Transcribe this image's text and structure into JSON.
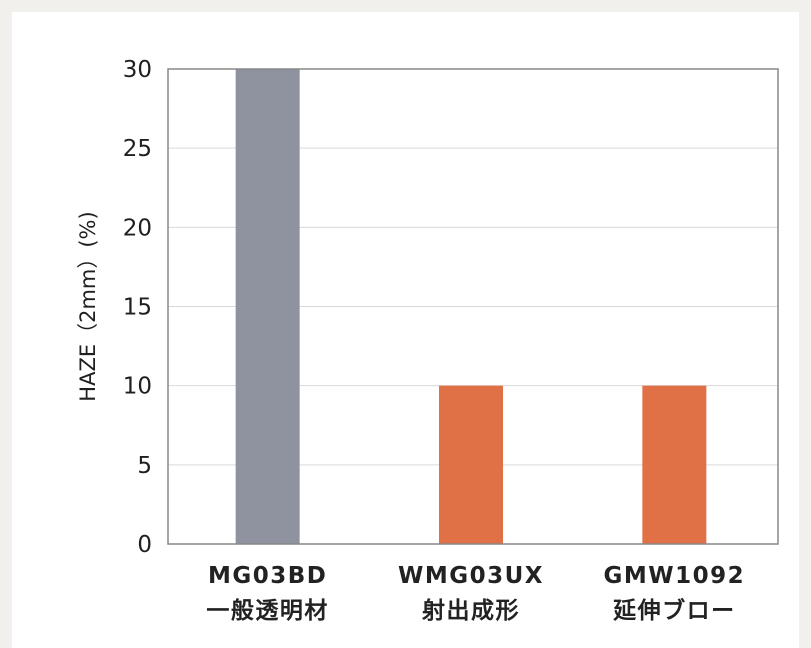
{
  "chart_data": {
    "type": "bar",
    "categories": [
      [
        "MG03BD",
        "一般透明材"
      ],
      [
        "WMG03UX",
        "射出成形"
      ],
      [
        "GMW1092",
        "延伸ブロー"
      ]
    ],
    "values": [
      30,
      10,
      10
    ],
    "bar_colors": [
      "#8e939f",
      "#e07046",
      "#e07046"
    ],
    "title": "",
    "xlabel": "",
    "ylabel": "HAZE（2mm）(%)",
    "ylim": [
      0,
      30
    ],
    "yticks": [
      0,
      5,
      10,
      15,
      20,
      25,
      30
    ],
    "grid": true,
    "legend": "none"
  },
  "colors": {
    "page_background": "#f1f0ec",
    "card_background": "#ffffff",
    "gridline": "#d9d9d9",
    "axis": "#888888"
  }
}
